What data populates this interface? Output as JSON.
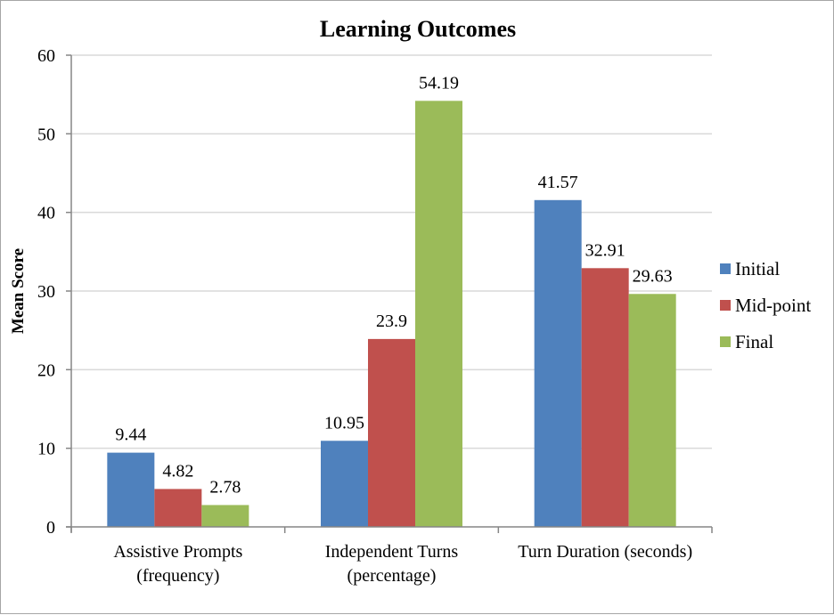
{
  "chart_data": {
    "type": "bar",
    "title": "Learning Outcomes",
    "xlabel": "",
    "ylabel": "Mean Score",
    "ylim": [
      0,
      60
    ],
    "yticks": [
      0,
      10,
      20,
      30,
      40,
      50,
      60
    ],
    "grid": true,
    "legend_position": "right",
    "categories": [
      [
        "Assistive Prompts",
        "(frequency)"
      ],
      [
        "Independent Turns",
        "(percentage)"
      ],
      [
        "Turn Duration (seconds)"
      ]
    ],
    "series": [
      {
        "name": "Initial",
        "color": "#4f81bd",
        "values": [
          9.44,
          10.95,
          41.57
        ],
        "labels": [
          "9.44",
          "10.95",
          "41.57"
        ]
      },
      {
        "name": "Mid-point",
        "color": "#c0504d",
        "values": [
          4.82,
          23.9,
          32.91
        ],
        "labels": [
          "4.82",
          "23.9",
          "32.91"
        ]
      },
      {
        "name": "Final",
        "color": "#9bbb59",
        "values": [
          2.78,
          54.19,
          29.63
        ],
        "labels": [
          "2.78",
          "54.19",
          "29.63"
        ]
      }
    ]
  }
}
